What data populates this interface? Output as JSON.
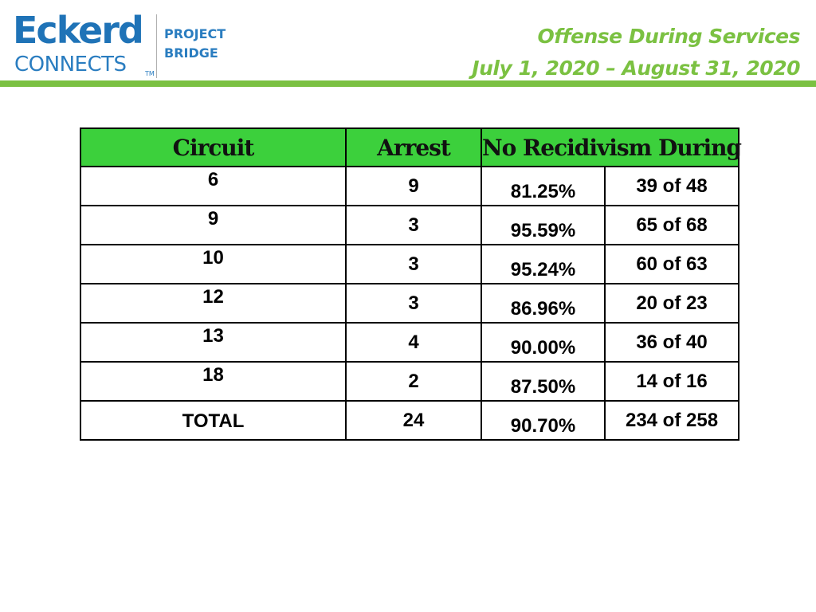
{
  "logo": {
    "brand_top": "Eckerd",
    "brand_bottom": "CONNECTS",
    "trademark": "TM",
    "program_line1": "PROJECT",
    "program_line2": "BRIDGE"
  },
  "header": {
    "title_line1": "Offense During Services",
    "title_line2": "July 1, 2020 – August 31, 2020",
    "accent_color": "#7bc142",
    "brand_color": "#1f73b7"
  },
  "table": {
    "header_color": "#3cd03c",
    "columns": [
      "Circuit",
      "Arrest",
      "No Recidivism During"
    ],
    "rows": [
      {
        "circuit": "6",
        "arrest": "9",
        "percent": "81.25%",
        "count": "39 of 48"
      },
      {
        "circuit": "9",
        "arrest": "3",
        "percent": "95.59%",
        "count": "65 of 68"
      },
      {
        "circuit": "10",
        "arrest": "3",
        "percent": "95.24%",
        "count": "60 of 63"
      },
      {
        "circuit": "12",
        "arrest": "3",
        "percent": "86.96%",
        "count": "20 of 23"
      },
      {
        "circuit": "13",
        "arrest": "4",
        "percent": "90.00%",
        "count": "36 of 40"
      },
      {
        "circuit": "18",
        "arrest": "2",
        "percent": "87.50%",
        "count": "14 of 16"
      }
    ],
    "total": {
      "circuit": "TOTAL",
      "arrest": "24",
      "percent": "90.70%",
      "count": "234 of 258"
    }
  }
}
